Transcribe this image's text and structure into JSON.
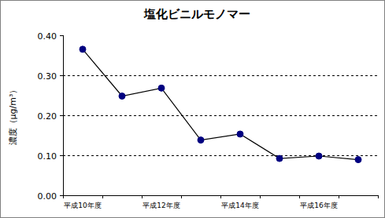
{
  "chart_data": {
    "type": "line",
    "title": "塩化ビニルモノマー",
    "y_label": "濃度（μg/m³）",
    "categories": [
      "平成10年度",
      null,
      "平成12年度",
      null,
      "平成14年度",
      null,
      "平成16年度",
      null
    ],
    "values": [
      0.365,
      0.248,
      0.268,
      0.138,
      0.153,
      0.092,
      0.098,
      0.089
    ],
    "color": "#000080",
    "marker": "circle",
    "line_style": "solid",
    "ylim": [
      0,
      0.4
    ],
    "yticks": [
      {
        "value": 0,
        "label": "0.00"
      },
      {
        "value": 0.1,
        "label": "0.10"
      },
      {
        "value": 0.2,
        "label": "0.20"
      },
      {
        "value": 0.3,
        "label": "0.30"
      },
      {
        "value": 0.4,
        "label": "0.40"
      }
    ],
    "grid": true
  }
}
